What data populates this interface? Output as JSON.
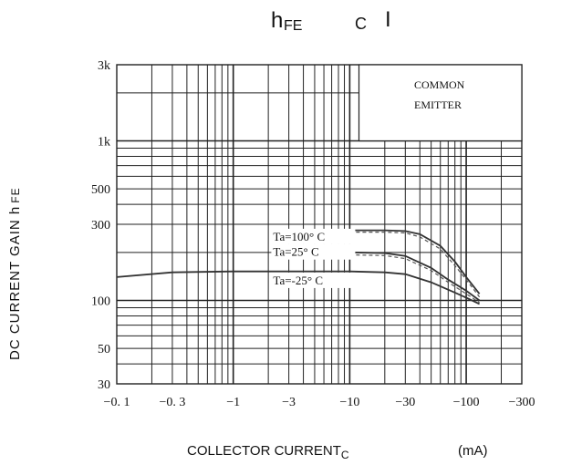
{
  "chart_data": {
    "type": "line",
    "title_parts": [
      "h",
      "FE",
      "C",
      "I"
    ],
    "xlabel": "COLLECTOR CURRENT",
    "xlabel_sub": "C",
    "xlabel_unit": "(mA)",
    "ylabel": "DC CURRENT GAIN h",
    "ylabel_sub": "FE",
    "x_scale": "log",
    "y_scale": "log",
    "xlim": [
      -0.1,
      -300
    ],
    "ylim": [
      30,
      3000
    ],
    "x_ticks": [
      -0.1,
      -0.3,
      -1,
      -3,
      -10,
      -30,
      -100,
      -300
    ],
    "x_tick_labels": [
      "−0. 1",
      "−0. 3",
      "−1",
      "−3",
      "−10",
      "−30",
      "−100",
      "−300"
    ],
    "y_ticks": [
      30,
      50,
      100,
      300,
      500,
      1000,
      3000
    ],
    "y_tick_labels": [
      "30",
      "50",
      "100",
      "300",
      "500",
      "1k",
      "3k"
    ],
    "grid": true,
    "annotation": [
      "COMMON",
      "EMITTER"
    ],
    "series": [
      {
        "name": "Ta=100° C",
        "points": [
          [
            -10,
            275
          ],
          [
            -20,
            275
          ],
          [
            -30,
            272
          ],
          [
            -40,
            260
          ],
          [
            -60,
            220
          ],
          [
            -80,
            175
          ],
          [
            -100,
            140
          ],
          [
            -130,
            110
          ]
        ],
        "typical": [
          [
            -10,
            268
          ],
          [
            -20,
            268
          ],
          [
            -30,
            265
          ],
          [
            -40,
            250
          ],
          [
            -60,
            210
          ],
          [
            -80,
            165
          ],
          [
            -100,
            135
          ],
          [
            -130,
            105
          ]
        ]
      },
      {
        "name": "Ta=25° C",
        "points": [
          [
            -10,
            200
          ],
          [
            -20,
            198
          ],
          [
            -30,
            190
          ],
          [
            -50,
            160
          ],
          [
            -70,
            135
          ],
          [
            -100,
            115
          ],
          [
            -130,
            100
          ]
        ],
        "typical": [
          [
            -10,
            193
          ],
          [
            -20,
            191
          ],
          [
            -30,
            183
          ],
          [
            -50,
            154
          ],
          [
            -70,
            130
          ],
          [
            -100,
            110
          ],
          [
            -130,
            97
          ]
        ]
      },
      {
        "name": "Ta=-25° C",
        "points": [
          [
            -0.1,
            140
          ],
          [
            -0.3,
            150
          ],
          [
            -1,
            152
          ],
          [
            -3,
            152
          ],
          [
            -10,
            152
          ],
          [
            -20,
            150
          ],
          [
            -30,
            146
          ],
          [
            -50,
            130
          ],
          [
            -80,
            112
          ],
          [
            -100,
            104
          ],
          [
            -130,
            95
          ]
        ],
        "typical": []
      }
    ]
  }
}
